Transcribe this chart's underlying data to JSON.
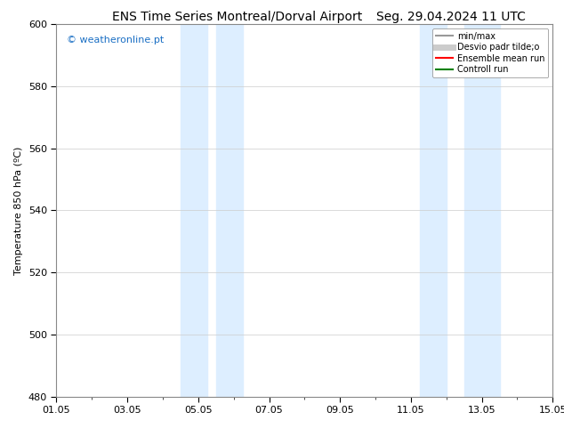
{
  "title_left": "ENS Time Series Montreal/Dorval Airport",
  "title_right": "Seg. 29.04.2024 11 UTC",
  "ylabel": "Temperature 850 hPa (ºC)",
  "ylim": [
    480,
    600
  ],
  "yticks": [
    480,
    500,
    520,
    540,
    560,
    580,
    600
  ],
  "xtick_labels": [
    "01.05",
    "03.05",
    "05.05",
    "07.05",
    "09.05",
    "11.05",
    "13.05",
    "15.05"
  ],
  "xtick_positions": [
    0,
    2,
    4,
    6,
    8,
    10,
    12,
    14
  ],
  "xlim": [
    0,
    14
  ],
  "shaded_bands": [
    {
      "x_start": 3.5,
      "x_end": 4.25,
      "color": "#ddeeff"
    },
    {
      "x_start": 4.5,
      "x_end": 5.25,
      "color": "#ddeeff"
    },
    {
      "x_start": 10.25,
      "x_end": 11.0,
      "color": "#ddeeff"
    },
    {
      "x_start": 11.5,
      "x_end": 12.5,
      "color": "#ddeeff"
    }
  ],
  "watermark_text": "© weatheronline.pt",
  "watermark_color": "#1a6fc4",
  "legend_entries": [
    {
      "label": "min/max",
      "color": "#999999",
      "lw": 1.5
    },
    {
      "label": "Desvio padr tilde;o",
      "color": "#cccccc",
      "lw": 5
    },
    {
      "label": "Ensemble mean run",
      "color": "#ff0000",
      "lw": 1.5
    },
    {
      "label": "Controll run",
      "color": "#008000",
      "lw": 1.5
    }
  ],
  "background_color": "#ffffff",
  "plot_bg_color": "#ffffff",
  "grid_color": "#cccccc",
  "title_fontsize": 10,
  "ylabel_fontsize": 8,
  "tick_fontsize": 8,
  "legend_fontsize": 7,
  "watermark_fontsize": 8
}
